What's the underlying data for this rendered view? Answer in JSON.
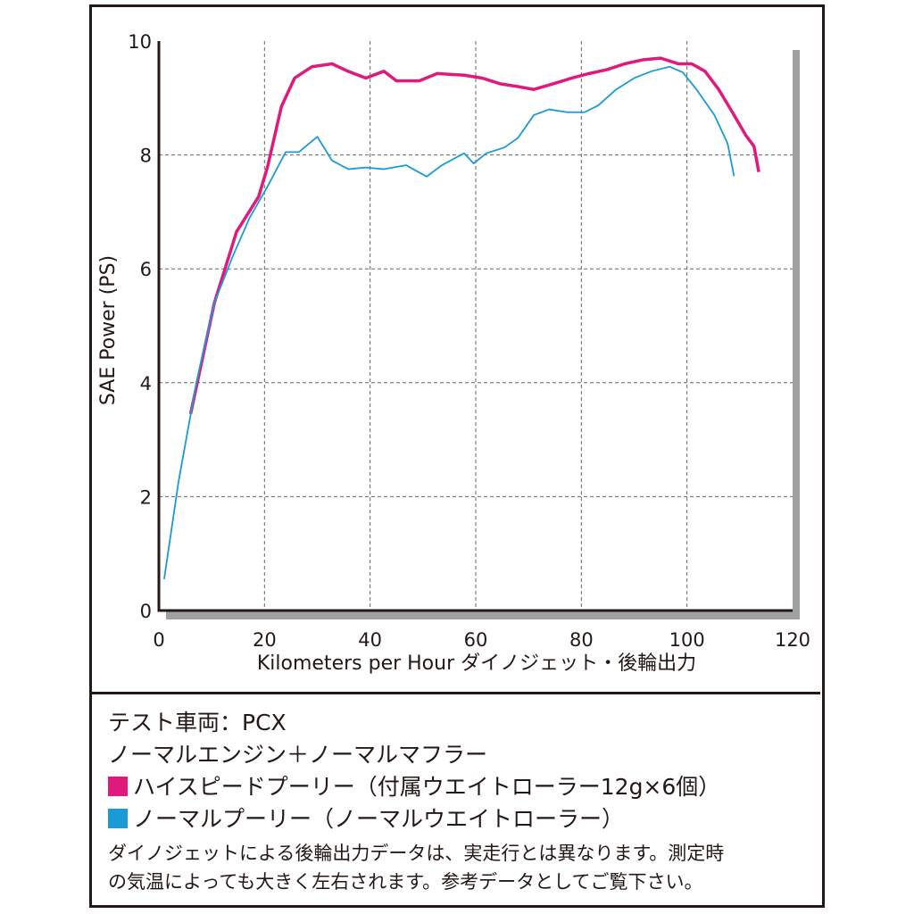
{
  "chart_data": {
    "type": "line",
    "xlabel": "Kilometers per Hour ダイノジェット・後輪出力",
    "ylabel": "SAE Power (PS)",
    "xlim": [
      0,
      120
    ],
    "xticks": [
      0,
      20,
      40,
      60,
      80,
      100,
      120
    ],
    "ylim": [
      0,
      10
    ],
    "yticks": [
      0,
      2,
      4,
      6,
      8,
      10
    ],
    "grid": true,
    "vehicle": "テスト車両：PCX",
    "condition": "ノーマルエンジン＋ノーマルマフラー",
    "notes": [
      "ダイノジェットによる後輪出力データは、実走行とは異なります。測定時",
      "の気温によっても大きく左右されます。参考データとしてご覧下さい。"
    ],
    "series": [
      {
        "name": "ハイスピードプーリー（付属ウエイトローラー12g×6個）",
        "color": "#e0197d",
        "x": [
          6,
          10.5,
          14.7,
          18.9,
          20.6,
          23.2,
          25.7,
          29,
          32.8,
          35.8,
          39.2,
          42.6,
          45,
          49.3,
          52.7,
          57.8,
          61.2,
          64.6,
          68,
          71,
          74.7,
          78.2,
          81.5,
          84.9,
          88.2,
          91.6,
          95,
          98.4,
          100.9,
          103.4,
          106,
          108.6,
          111.1,
          112.7,
          113.6
        ],
        "values": [
          3.45,
          5.4,
          6.65,
          7.27,
          7.8,
          8.85,
          9.35,
          9.55,
          9.6,
          9.47,
          9.35,
          9.47,
          9.3,
          9.3,
          9.43,
          9.4,
          9.35,
          9.25,
          9.2,
          9.15,
          9.25,
          9.35,
          9.43,
          9.5,
          9.6,
          9.67,
          9.7,
          9.6,
          9.6,
          9.47,
          9.15,
          8.75,
          8.35,
          8.15,
          7.7
        ]
      },
      {
        "name": "ノーマルプーリー（ノーマルウエイトローラー）",
        "color": "#1a9ad6",
        "x": [
          1,
          3.7,
          7.1,
          10.5,
          13.9,
          17.2,
          20.6,
          24,
          26.5,
          30,
          32.8,
          35.9,
          39.2,
          42.6,
          46.8,
          50.7,
          53.6,
          57.8,
          59.6,
          62,
          65.4,
          68,
          71,
          73.9,
          77.3,
          80.6,
          83.2,
          86.6,
          90,
          93.3,
          96.7,
          99.2,
          101.8,
          105.2,
          107.7,
          108.9
        ],
        "values": [
          0.55,
          2.25,
          4,
          5.4,
          6.2,
          6.9,
          7.45,
          8.05,
          8.05,
          8.32,
          7.9,
          7.75,
          7.78,
          7.75,
          7.82,
          7.62,
          7.82,
          8.03,
          7.85,
          8.03,
          8.13,
          8.3,
          8.7,
          8.8,
          8.75,
          8.75,
          8.87,
          9.15,
          9.35,
          9.47,
          9.55,
          9.45,
          9.15,
          8.7,
          8.2,
          7.63
        ]
      }
    ]
  }
}
